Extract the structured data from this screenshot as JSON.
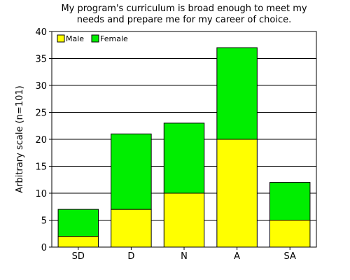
{
  "chart_data": {
    "type": "bar",
    "stacked": true,
    "title_lines": [
      "My program's curriculum is broad enough to meet my",
      "needs and prepare me for my career of choice."
    ],
    "xlabel": "",
    "ylabel": "Arbitrary scale (n=101)",
    "ylim": [
      0,
      40
    ],
    "yticks": [
      0,
      5,
      10,
      15,
      20,
      25,
      30,
      35,
      40
    ],
    "categories": [
      "SD",
      "D",
      "N",
      "A",
      "SA"
    ],
    "series": [
      {
        "name": "Male",
        "color": "#ffff00",
        "values": [
          2,
          7,
          10,
          20,
          5
        ]
      },
      {
        "name": "Female",
        "color": "#00ee00",
        "values": [
          5,
          14,
          13,
          17,
          7
        ]
      }
    ],
    "grid": "horizontal",
    "legend_position": "top-left"
  }
}
